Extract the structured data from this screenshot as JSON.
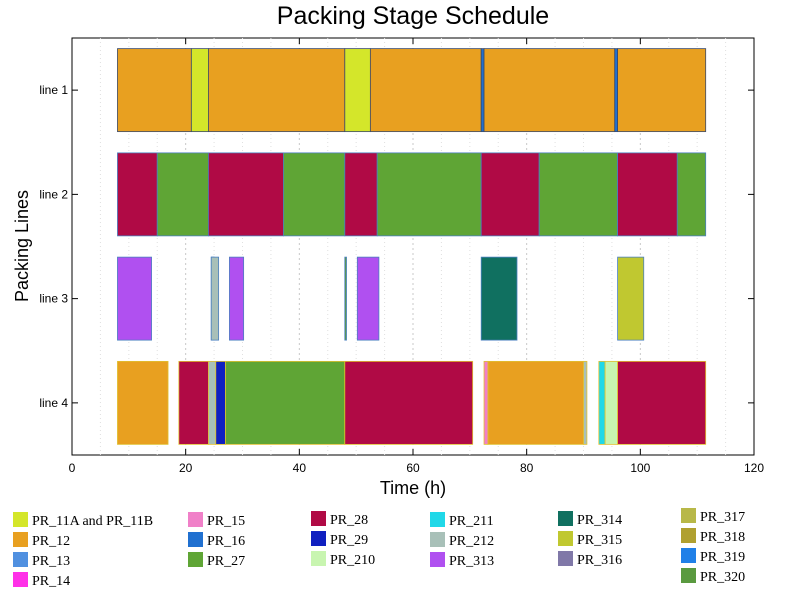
{
  "chart_data": {
    "type": "gantt",
    "title": "Packing Stage Schedule",
    "xlabel": "Time (h)",
    "ylabel": "Packing Lines",
    "xlim": [
      0,
      120
    ],
    "xticks": [
      "0",
      "20",
      "40",
      "60",
      "80",
      "100",
      "120"
    ],
    "grid": "vertical dotted",
    "lines": [
      "line 1",
      "line 2",
      "line 3",
      "line 4"
    ],
    "colors": {
      "PR_11A and PR_11B": "#d4e62a",
      "PR_12": "#e8a020",
      "PR_13": "#5090e0",
      "PR_14": "#ff30e8",
      "PR_15": "#f080c8",
      "PR_16": "#2070d0",
      "PR_27": "#5fa535",
      "PR_28": "#b00a45",
      "PR_29": "#1020c0",
      "PR_210": "#c8f5b0",
      "PR_211": "#20d8e8",
      "PR_212": "#a8c0b8",
      "PR_313": "#b050f0",
      "PR_314": "#107060",
      "PR_315": "#c0c830",
      "PR_316": "#8078a8",
      "PR_317": "#b8b848",
      "PR_318": "#b0a030",
      "PR_319": "#2080e8",
      "PR_320": "#5a9a40"
    },
    "tasks": [
      {
        "line": "line 1",
        "product": "PR_12",
        "start": 8,
        "end": 21
      },
      {
        "line": "line 1",
        "product": "PR_11A and PR_11B",
        "start": 21,
        "end": 24
      },
      {
        "line": "line 1",
        "product": "PR_12",
        "start": 24,
        "end": 48
      },
      {
        "line": "line 1",
        "product": "PR_11A and PR_11B",
        "start": 48,
        "end": 52.5
      },
      {
        "line": "line 1",
        "product": "PR_12",
        "start": 52.5,
        "end": 72
      },
      {
        "line": "line 1",
        "product": "PR_16",
        "start": 72,
        "end": 72.5
      },
      {
        "line": "line 1",
        "product": "PR_12",
        "start": 72.5,
        "end": 95.5
      },
      {
        "line": "line 1",
        "product": "PR_16",
        "start": 95.5,
        "end": 96
      },
      {
        "line": "line 1",
        "product": "PR_12",
        "start": 96,
        "end": 111.5
      },
      {
        "line": "line 2",
        "product": "PR_28",
        "start": 8,
        "end": 15
      },
      {
        "line": "line 2",
        "product": "PR_27",
        "start": 15,
        "end": 24
      },
      {
        "line": "line 2",
        "product": "PR_28",
        "start": 24,
        "end": 37.2
      },
      {
        "line": "line 2",
        "product": "PR_27",
        "start": 37.2,
        "end": 48
      },
      {
        "line": "line 2",
        "product": "PR_28",
        "start": 48,
        "end": 53.7
      },
      {
        "line": "line 2",
        "product": "PR_27",
        "start": 53.7,
        "end": 72
      },
      {
        "line": "line 2",
        "product": "PR_28",
        "start": 72,
        "end": 82.2
      },
      {
        "line": "line 2",
        "product": "PR_27",
        "start": 82.2,
        "end": 96
      },
      {
        "line": "line 2",
        "product": "PR_28",
        "start": 96,
        "end": 106.5
      },
      {
        "line": "line 2",
        "product": "PR_27",
        "start": 106.5,
        "end": 111.5
      },
      {
        "line": "line 3",
        "product": "PR_313",
        "start": 8,
        "end": 14
      },
      {
        "line": "line 3",
        "product": "PR_316",
        "start": 24.5,
        "end": 25
      },
      {
        "line": "line 3",
        "product": "PR_212",
        "start": 24.5,
        "end": 25.8
      },
      {
        "line": "line 3",
        "product": "PR_313",
        "start": 27.7,
        "end": 30.2
      },
      {
        "line": "line 3",
        "product": "PR_320",
        "start": 48,
        "end": 48.3
      },
      {
        "line": "line 3",
        "product": "PR_313",
        "start": 50.2,
        "end": 54
      },
      {
        "line": "line 3",
        "product": "PR_314",
        "start": 72,
        "end": 78.3
      },
      {
        "line": "line 3",
        "product": "PR_315",
        "start": 96,
        "end": 100.6
      },
      {
        "line": "line 4",
        "product": "PR_12",
        "start": 8,
        "end": 16.9
      },
      {
        "line": "line 4",
        "product": "PR_28",
        "start": 18.8,
        "end": 24
      },
      {
        "line": "line 4",
        "product": "PR_212",
        "start": 24,
        "end": 25.3
      },
      {
        "line": "line 4",
        "product": "PR_29",
        "start": 25.3,
        "end": 27
      },
      {
        "line": "line 4",
        "product": "PR_27",
        "start": 27,
        "end": 48
      },
      {
        "line": "line 4",
        "product": "PR_28",
        "start": 48,
        "end": 70.5
      },
      {
        "line": "line 4",
        "product": "PR_15",
        "start": 72.5,
        "end": 73.2
      },
      {
        "line": "line 4",
        "product": "PR_12",
        "start": 73.2,
        "end": 90
      },
      {
        "line": "line 4",
        "product": "PR_212",
        "start": 90,
        "end": 90.6
      },
      {
        "line": "line 4",
        "product": "PR_211",
        "start": 92.7,
        "end": 93.8
      },
      {
        "line": "line 4",
        "product": "PR_210",
        "start": 93.8,
        "end": 96
      },
      {
        "line": "line 4",
        "product": "PR_28",
        "start": 96,
        "end": 111.5
      }
    ],
    "legend": [
      [
        "PR_11A and PR_11B",
        "PR_12",
        "PR_13",
        "PR_14"
      ],
      [
        "PR_15",
        "PR_16",
        "PR_27"
      ],
      [
        "PR_28",
        "PR_29",
        "PR_210"
      ],
      [
        "PR_211",
        "PR_212",
        "PR_313"
      ],
      [
        "PR_314",
        "PR_315",
        "PR_316"
      ],
      [
        "PR_317",
        "PR_318",
        "PR_319",
        "PR_320"
      ]
    ]
  }
}
